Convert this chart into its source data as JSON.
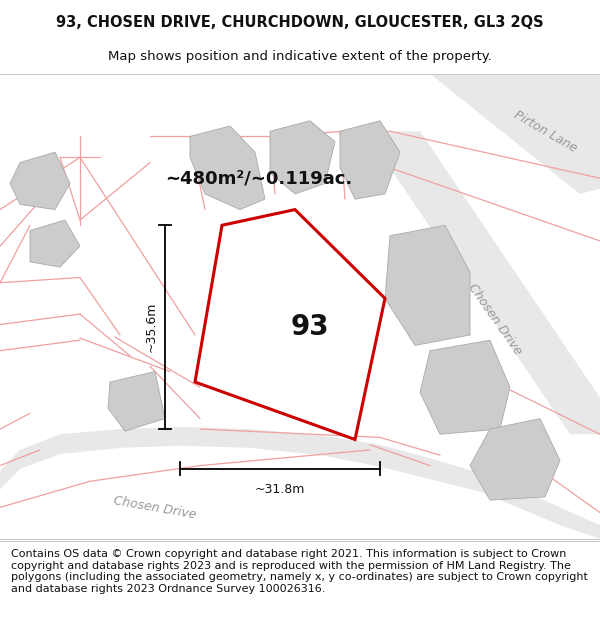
{
  "title": "93, CHOSEN DRIVE, CHURCHDOWN, GLOUCESTER, GL3 2QS",
  "subtitle": "Map shows position and indicative extent of the property.",
  "footer": "Contains OS data © Crown copyright and database right 2021. This information is subject to Crown copyright and database rights 2023 and is reproduced with the permission of HM Land Registry. The polygons (including the associated geometry, namely x, y co-ordinates) are subject to Crown copyright and database rights 2023 Ordnance Survey 100026316.",
  "plot_color": "#cc0000",
  "plot_label": "93",
  "area_text": "~480m²/~0.119ac.",
  "dim_width": "~31.8m",
  "dim_height": "~35.6m",
  "road_label_bottom": "Chosen Drive",
  "road_label_right": "Chosen Drive",
  "road_label_top": "Pirton Lane",
  "title_fontsize": 10.5,
  "subtitle_fontsize": 9.5,
  "footer_fontsize": 8.0,
  "pink": "#f0a0a0",
  "gray_road": "#d8d8d8",
  "gray_building": "#cccccc",
  "gray_road_light": "#e8e8e8"
}
